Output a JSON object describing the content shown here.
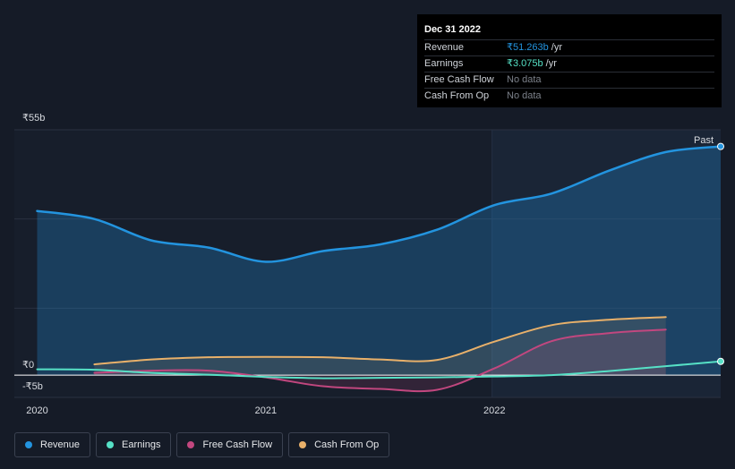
{
  "tooltip": {
    "date": "Dec 31 2022",
    "rows": [
      {
        "label": "Revenue",
        "value": "₹51.263b",
        "unit": "/yr"
      },
      {
        "label": "Earnings",
        "value": "₹3.075b",
        "unit": "/yr"
      },
      {
        "label": "Free Cash Flow",
        "value": "No data"
      },
      {
        "label": "Cash From Op",
        "value": "No data"
      }
    ]
  },
  "legend": {
    "items": [
      {
        "label": "Revenue",
        "color": "#2394df"
      },
      {
        "label": "Earnings",
        "color": "#56e1c6"
      },
      {
        "label": "Free Cash Flow",
        "color": "#c2477f"
      },
      {
        "label": "Cash From Op",
        "color": "#e8b06a"
      }
    ]
  },
  "chart_data": {
    "type": "line",
    "ylim": [
      -5,
      55
    ],
    "xlim": [
      2019.9,
      2022.99
    ],
    "y_tick_labels": [
      {
        "label": "₹55b",
        "value": 55
      },
      {
        "label": "₹0",
        "value": 0
      },
      {
        "label": "-₹5b",
        "value": -5
      }
    ],
    "x_tick_labels": [
      {
        "label": "2020",
        "value": 2020.0
      },
      {
        "label": "2021",
        "value": 2021.0
      },
      {
        "label": "2022",
        "value": 2022.0
      }
    ],
    "past_label": "Past",
    "past_start": 2021.99,
    "series": [
      {
        "name": "Revenue",
        "color": "#2394df",
        "fill": true,
        "x": [
          2020.0,
          2020.25,
          2020.5,
          2020.75,
          2021.0,
          2021.25,
          2021.5,
          2021.75,
          2022.0,
          2022.25,
          2022.5,
          2022.75,
          2022.99
        ],
        "values": [
          36.8,
          35.0,
          30.2,
          28.6,
          25.4,
          27.8,
          29.3,
          32.6,
          38.1,
          40.7,
          45.8,
          50.0,
          51.263
        ]
      },
      {
        "name": "Earnings",
        "color": "#56e1c6",
        "fill": false,
        "x": [
          2020.0,
          2020.25,
          2020.5,
          2020.75,
          2021.0,
          2021.25,
          2021.5,
          2021.75,
          2022.0,
          2022.25,
          2022.5,
          2022.75,
          2022.99
        ],
        "values": [
          1.3,
          1.2,
          0.5,
          0.1,
          -0.4,
          -0.7,
          -0.6,
          -0.5,
          -0.3,
          0.0,
          0.9,
          2.0,
          3.075
        ]
      },
      {
        "name": "Free Cash Flow",
        "color": "#c2477f",
        "fill": true,
        "x": [
          2020.25,
          2020.5,
          2020.75,
          2021.0,
          2021.25,
          2021.5,
          2021.75,
          2022.0,
          2022.25,
          2022.5,
          2022.75
        ],
        "values": [
          0.5,
          1.0,
          1.0,
          -0.5,
          -2.5,
          -3.1,
          -3.3,
          1.5,
          7.6,
          9.4,
          10.2
        ]
      },
      {
        "name": "Cash From Op",
        "color": "#e8b06a",
        "fill": true,
        "x": [
          2020.25,
          2020.5,
          2020.75,
          2021.0,
          2021.25,
          2021.5,
          2021.75,
          2022.0,
          2022.25,
          2022.5,
          2022.75
        ],
        "values": [
          2.4,
          3.5,
          4.0,
          4.1,
          4.0,
          3.5,
          3.4,
          7.5,
          11.2,
          12.4,
          13.0
        ]
      }
    ]
  }
}
